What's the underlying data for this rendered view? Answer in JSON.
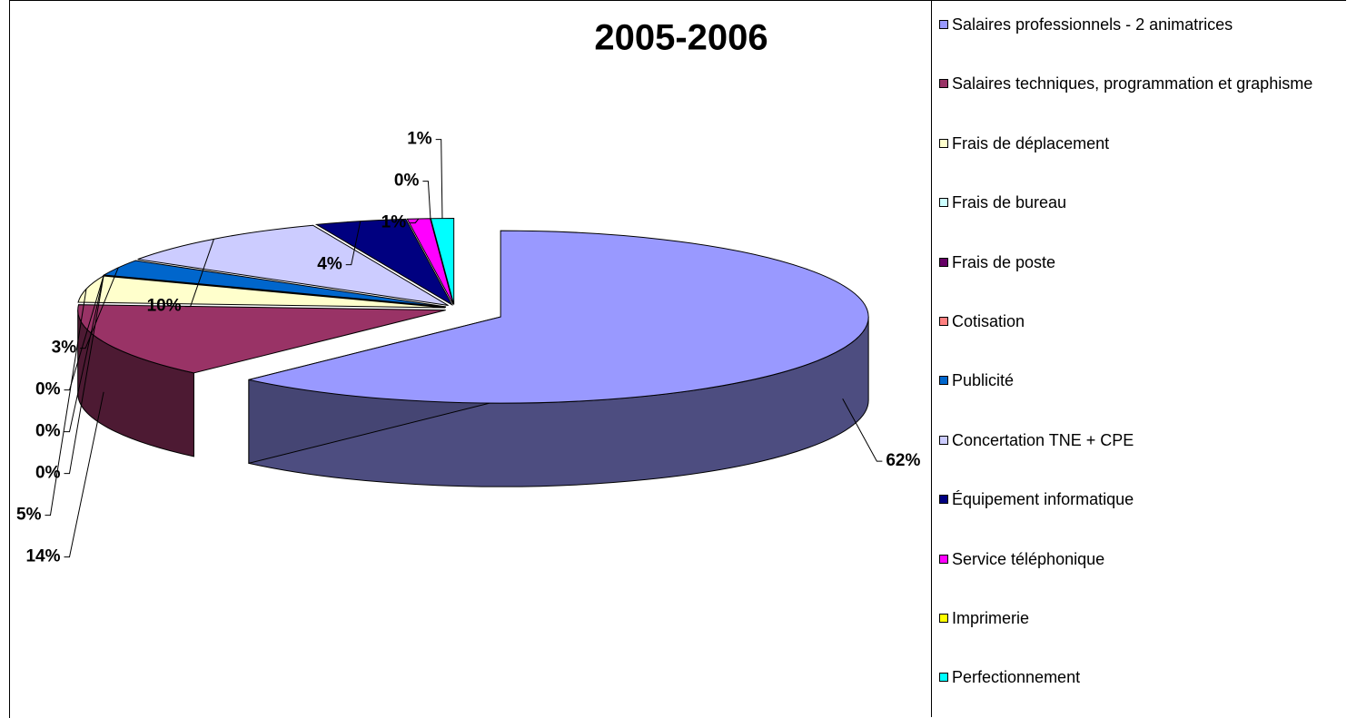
{
  "chart_data": {
    "type": "pie",
    "title": "2005-2006",
    "categories": [
      "Salaires professionnels - 2 animatrices",
      "Salaires techniques, programmation et graphisme",
      "Frais de déplacement",
      "Frais de bureau",
      "Frais de poste",
      "Cotisation",
      "Publicité",
      "Concertation TNE + CPE",
      "Équipement informatique",
      "Service téléphonique",
      "Imprimerie",
      "Perfectionnement"
    ],
    "values": [
      62,
      14,
      5,
      0,
      0,
      0,
      3,
      10,
      4,
      1,
      0,
      1
    ],
    "value_labels": [
      "62%",
      "14%",
      "5%",
      "0%",
      "0%",
      "0%",
      "3%",
      "10%",
      "4%",
      "1%",
      "0%",
      "1%"
    ],
    "colors": [
      "#9999ff",
      "#993366",
      "#ffffcc",
      "#ccffff",
      "#660066",
      "#ff8080",
      "#0066cc",
      "#ccccff",
      "#000080",
      "#ff00ff",
      "#ffff00",
      "#00ffff"
    ],
    "legend": "right"
  }
}
